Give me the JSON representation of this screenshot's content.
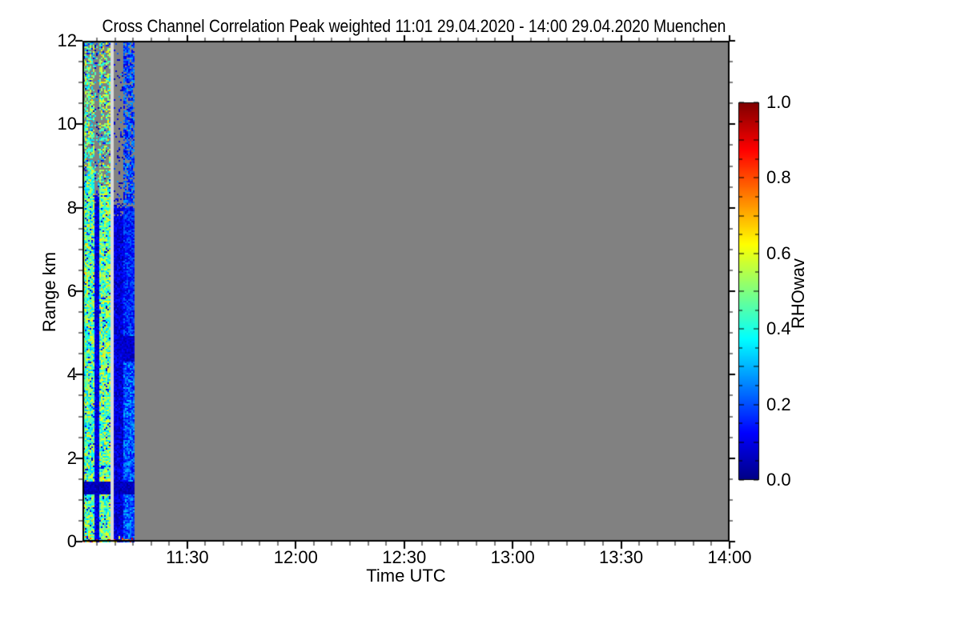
{
  "page": {
    "background": "#ffffff"
  },
  "header": {
    "title": "Cross Channel Correlation Peak weighted   11:01 29.04.2020 - 14:00 29.04.2020 Muenchen"
  },
  "chart_data": {
    "type": "heatmap",
    "title": "Cross Channel Correlation Peak weighted   11:01 29.04.2020 - 14:00 29.04.2020 Muenchen",
    "xlabel": "Time UTC",
    "ylabel": "Range km",
    "time_start": "11:01",
    "time_end": "14:00",
    "x_total_minutes": 179,
    "x_minor_step_minutes": 5,
    "x_ticks": [
      {
        "label": "11:30",
        "minute": 29
      },
      {
        "label": "12:00",
        "minute": 59
      },
      {
        "label": "12:30",
        "minute": 89
      },
      {
        "label": "13:00",
        "minute": 119
      },
      {
        "label": "13:30",
        "minute": 149
      },
      {
        "label": "14:00",
        "minute": 179
      }
    ],
    "ylim": [
      0,
      12
    ],
    "y_minor_step_km": 0.5,
    "y_ticks": [
      {
        "label": "0",
        "km": 0
      },
      {
        "label": "2",
        "km": 2
      },
      {
        "label": "4",
        "km": 4
      },
      {
        "label": "6",
        "km": 6
      },
      {
        "label": "8",
        "km": 8
      },
      {
        "label": "10",
        "km": 10
      },
      {
        "label": "12",
        "km": 12
      }
    ],
    "grid": false,
    "no_data_color": "#818181",
    "colorbar": {
      "label": "RHOwav",
      "position": "right",
      "lim": [
        0,
        1
      ],
      "minor_step": 0.05,
      "ticks": [
        {
          "label": "0.0",
          "v": 0.0
        },
        {
          "label": "0.2",
          "v": 0.2
        },
        {
          "label": "0.4",
          "v": 0.4
        },
        {
          "label": "0.6",
          "v": 0.6
        },
        {
          "label": "0.8",
          "v": 0.8
        },
        {
          "label": "1.0",
          "v": 1.0
        }
      ],
      "colormap": "jet",
      "jet_stops": [
        [
          0.0,
          [
            0,
            0,
            131
          ]
        ],
        [
          0.125,
          [
            0,
            0,
            255
          ]
        ],
        [
          0.375,
          [
            0,
            255,
            255
          ]
        ],
        [
          0.625,
          [
            255,
            255,
            0
          ]
        ],
        [
          0.875,
          [
            255,
            0,
            0
          ]
        ],
        [
          1.0,
          [
            128,
            0,
            0
          ]
        ]
      ]
    },
    "coverage_note": "Correlation data present only from 11:01 to about 11:15 UTC at the left edge; the rest of the 11:01-14:00 window is no-data gray.",
    "seed": 7,
    "bands": [
      {
        "id": "speckle-a",
        "kind": "speckle",
        "t": [
          0.0,
          2.9
        ],
        "v": [
          0.3,
          0.58
        ],
        "yellow_p": 0.15,
        "yellow_v": [
          0.55,
          0.68
        ],
        "navy_p": 0.08,
        "navy_v": [
          0.05,
          0.2
        ],
        "gray_above_km": 8.8,
        "gray_above_p": 0.35
      },
      {
        "id": "gap-1",
        "kind": "gap",
        "t": [
          2.9,
          4.4
        ],
        "fill_below_km": 8.35,
        "fuzz": 0.25,
        "v": [
          0.03,
          0.16
        ],
        "above_navy_p": 0.08,
        "above_navy_v": [
          0.02,
          0.12
        ],
        "above_speck_p": 0.12,
        "above_speck_v": [
          0.25,
          0.5
        ]
      },
      {
        "id": "speckle-b",
        "kind": "speckle",
        "t": [
          4.4,
          7.5
        ],
        "v": [
          0.3,
          0.6
        ],
        "yellow_p": 0.16,
        "yellow_v": [
          0.55,
          0.68
        ],
        "navy_p": 0.07,
        "navy_v": [
          0.05,
          0.2
        ],
        "gray_above_km": 8.55,
        "gray_above_p": 0.45
      },
      {
        "id": "white-line",
        "kind": "line",
        "t": [
          7.5,
          8.2
        ],
        "color": "#d8d8d8"
      },
      {
        "id": "gap-2",
        "kind": "gap",
        "t": [
          8.2,
          11.1
        ],
        "fill_below_km": 8.05,
        "fuzz": 0.35,
        "v": [
          0.02,
          0.15
        ],
        "above_navy_p": 0.07,
        "above_navy_v": [
          0.02,
          0.12
        ],
        "above_speck_p": 0.04,
        "above_speck_v": [
          0.1,
          0.3
        ]
      },
      {
        "id": "blue-c",
        "kind": "blue",
        "t": [
          11.1,
          14.2
        ],
        "gray_above_km": 8.0,
        "gray_above_p": 0.25,
        "v_above": [
          0.08,
          0.3
        ],
        "v": [
          0.1,
          0.32
        ],
        "dark_patch_km": [
          4.35,
          4.95
        ],
        "dark_patch_v": [
          0.03,
          0.12
        ],
        "mid_dark_km": [
          5.0,
          8.0
        ],
        "mid_dark_v": [
          0.07,
          0.24
        ]
      }
    ],
    "features": {
      "dark_band_km": [
        1.15,
        1.45
      ],
      "dark_band_v": [
        0.02,
        0.1
      ],
      "surface_km": 0.15,
      "surface_p": 0.25,
      "surface_v": [
        0.5,
        0.95
      ],
      "top_row_km": 11.87,
      "top_row_p": 0.5,
      "top_row_v": [
        0.1,
        0.3
      ]
    }
  }
}
